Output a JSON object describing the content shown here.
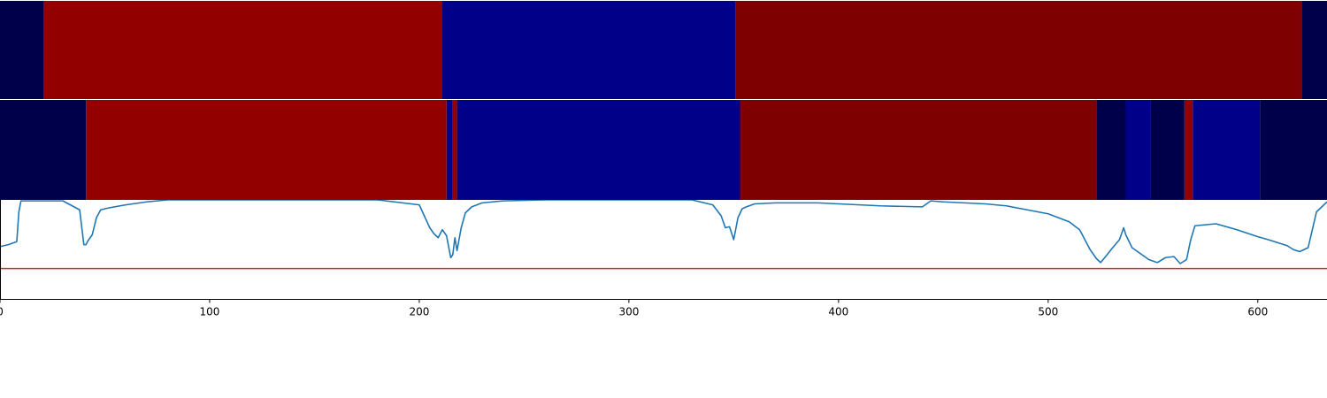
{
  "chart_data": [
    {
      "type": "heatmap",
      "role": "segmentation-track-1",
      "x_range": [
        0,
        633
      ],
      "segments": [
        {
          "start": 0,
          "end": 21,
          "color": "#00004a"
        },
        {
          "start": 21,
          "end": 211,
          "color": "#920000"
        },
        {
          "start": 211,
          "end": 351,
          "color": "#000088"
        },
        {
          "start": 351,
          "end": 621,
          "color": "#7f0000"
        },
        {
          "start": 621,
          "end": 633,
          "color": "#00004a"
        }
      ]
    },
    {
      "type": "heatmap",
      "role": "segmentation-track-2",
      "x_range": [
        0,
        633
      ],
      "segments": [
        {
          "start": 0,
          "end": 41,
          "color": "#00004a"
        },
        {
          "start": 41,
          "end": 213,
          "color": "#920000"
        },
        {
          "start": 213,
          "end": 216,
          "color": "#000088"
        },
        {
          "start": 216,
          "end": 218,
          "color": "#920000"
        },
        {
          "start": 218,
          "end": 353,
          "color": "#000088"
        },
        {
          "start": 353,
          "end": 523,
          "color": "#7f0000"
        },
        {
          "start": 523,
          "end": 537,
          "color": "#00004a"
        },
        {
          "start": 537,
          "end": 549,
          "color": "#000088"
        },
        {
          "start": 549,
          "end": 565,
          "color": "#00004a"
        },
        {
          "start": 565,
          "end": 569,
          "color": "#920000"
        },
        {
          "start": 569,
          "end": 601,
          "color": "#000088"
        },
        {
          "start": 601,
          "end": 633,
          "color": "#00004a"
        }
      ]
    },
    {
      "type": "line",
      "xlim": [
        0,
        633
      ],
      "ylim": [
        0,
        1
      ],
      "xticks": [
        0,
        100,
        200,
        300,
        400,
        500,
        600
      ],
      "line_color": "#1f77b4",
      "threshold": {
        "y": 0.31,
        "color": "#d62728"
      },
      "x": [
        0,
        4,
        8,
        9,
        10,
        14,
        20,
        30,
        38,
        40,
        41,
        42,
        44,
        46,
        48,
        52,
        60,
        70,
        80,
        100,
        120,
        140,
        160,
        180,
        200,
        205,
        207,
        209,
        211,
        213,
        215,
        216,
        217,
        218,
        220,
        222,
        225,
        230,
        240,
        260,
        300,
        330,
        340,
        344,
        346,
        348,
        350,
        352,
        354,
        356,
        360,
        370,
        390,
        400,
        420,
        440,
        444,
        450,
        470,
        480,
        490,
        500,
        510,
        515,
        520,
        523,
        525,
        527,
        530,
        534,
        536,
        537,
        540,
        544,
        548,
        552,
        556,
        560,
        563,
        566,
        568,
        570,
        580,
        590,
        600,
        605,
        608,
        611,
        614,
        617,
        620,
        624,
        628,
        633
      ],
      "y": [
        0.53,
        0.55,
        0.58,
        0.88,
        0.99,
        0.99,
        0.99,
        0.99,
        0.9,
        0.55,
        0.55,
        0.59,
        0.65,
        0.82,
        0.9,
        0.92,
        0.95,
        0.98,
        1.0,
        1.0,
        1.0,
        1.0,
        1.0,
        1.0,
        0.95,
        0.72,
        0.66,
        0.62,
        0.7,
        0.64,
        0.42,
        0.45,
        0.62,
        0.49,
        0.72,
        0.87,
        0.93,
        0.97,
        0.99,
        1.0,
        1.0,
        1.0,
        0.95,
        0.84,
        0.72,
        0.73,
        0.6,
        0.82,
        0.91,
        0.93,
        0.96,
        0.97,
        0.97,
        0.96,
        0.94,
        0.93,
        0.99,
        0.98,
        0.96,
        0.94,
        0.9,
        0.86,
        0.78,
        0.7,
        0.5,
        0.41,
        0.37,
        0.42,
        0.5,
        0.6,
        0.72,
        0.65,
        0.52,
        0.46,
        0.4,
        0.37,
        0.42,
        0.43,
        0.36,
        0.4,
        0.6,
        0.74,
        0.76,
        0.7,
        0.63,
        0.6,
        0.58,
        0.56,
        0.54,
        0.5,
        0.48,
        0.52,
        0.88,
        0.98
      ]
    }
  ]
}
